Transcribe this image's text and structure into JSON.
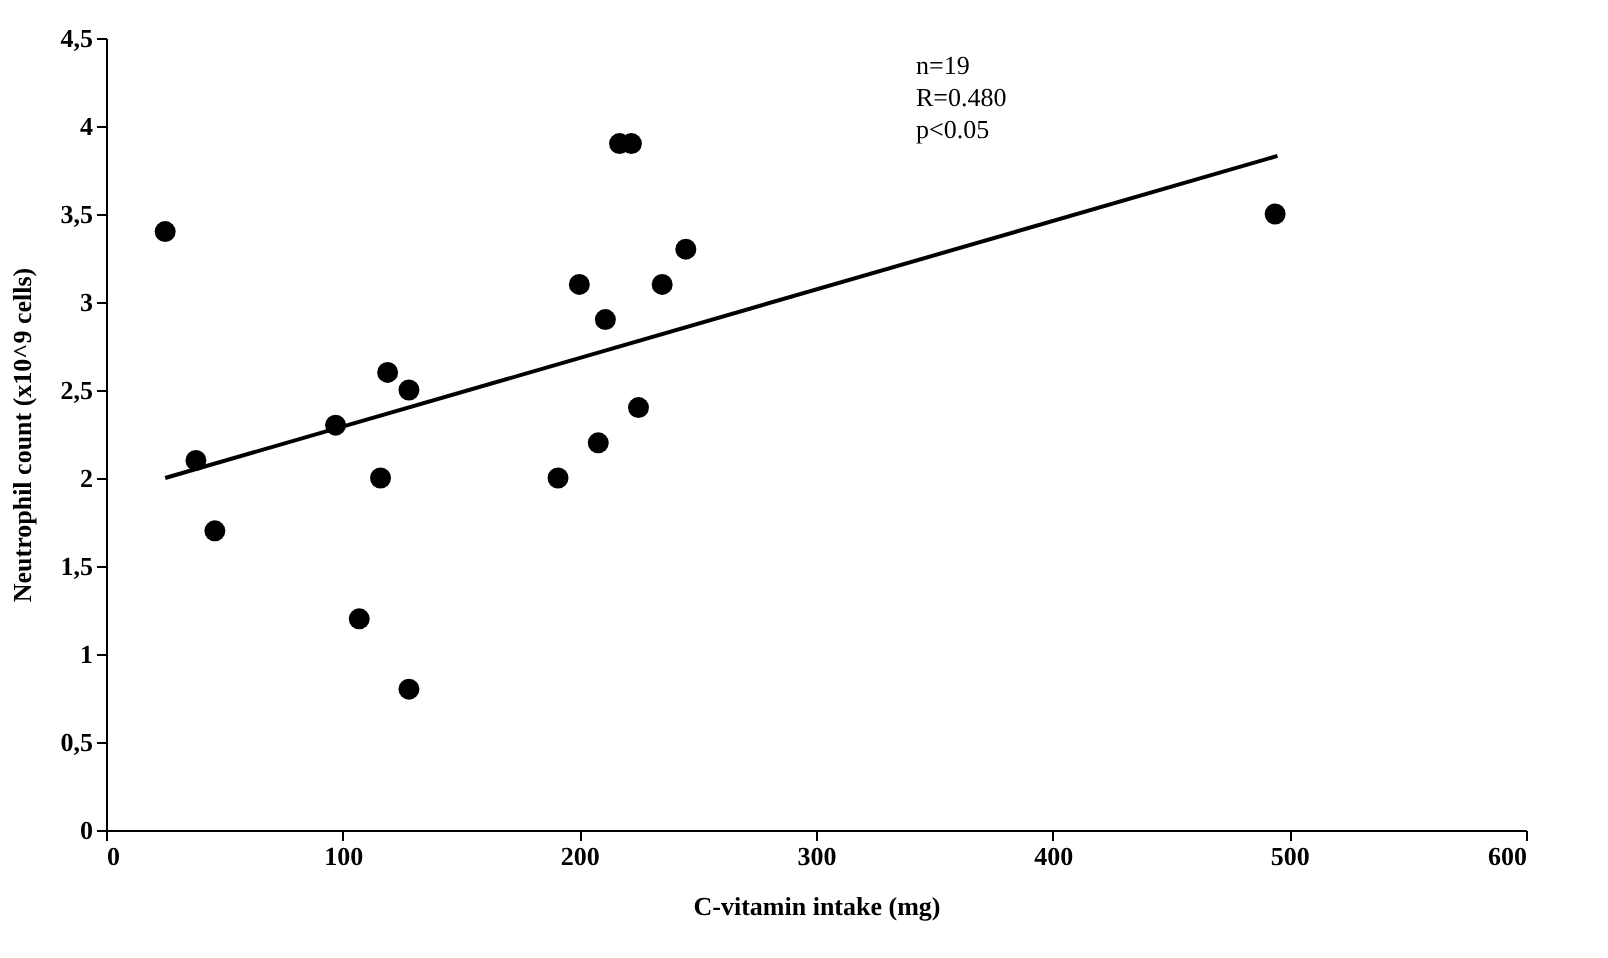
{
  "chart_data": {
    "type": "scatter",
    "xlabel": "C-vitamin intake (mg)",
    "ylabel": "Neutrophil count (x10^9 cells)",
    "annotations": [
      "n=19\nR=0.480\np<0.05"
    ],
    "xlim": [
      0,
      600
    ],
    "xticks": [
      0,
      100,
      200,
      300,
      400,
      500,
      600
    ],
    "ylim": [
      0,
      4.5
    ],
    "yticks": [
      0,
      {
        "value": 0.5,
        "label": "0,5"
      },
      1,
      {
        "value": 1.5,
        "label": "1,5"
      },
      2,
      {
        "value": 2.5,
        "label": "2,5"
      },
      3,
      {
        "value": 3.5,
        "label": "3,5"
      },
      4,
      {
        "value": 4.5,
        "label": "4,5"
      }
    ],
    "grid": false,
    "marker": "circle",
    "series": [
      {
        "color": "#000000",
        "x": [
          25,
          38,
          46,
          97,
          107,
          116,
          119,
          128,
          128,
          191,
          200,
          208,
          211,
          217,
          222,
          225,
          235,
          245,
          494
        ],
        "values": [
          3.4,
          2.1,
          1.7,
          2.3,
          1.2,
          2.0,
          2.6,
          2.5,
          0.8,
          2.0,
          3.1,
          2.2,
          2.9,
          3.9,
          3.9,
          2.4,
          3.1,
          3.3,
          3.5
        ]
      },
      {
        "type": "line",
        "color": "#000000",
        "line_style": "solid",
        "marker": "none",
        "x": [
          25,
          495
        ],
        "values": [
          2.0,
          3.83
        ]
      }
    ]
  }
}
